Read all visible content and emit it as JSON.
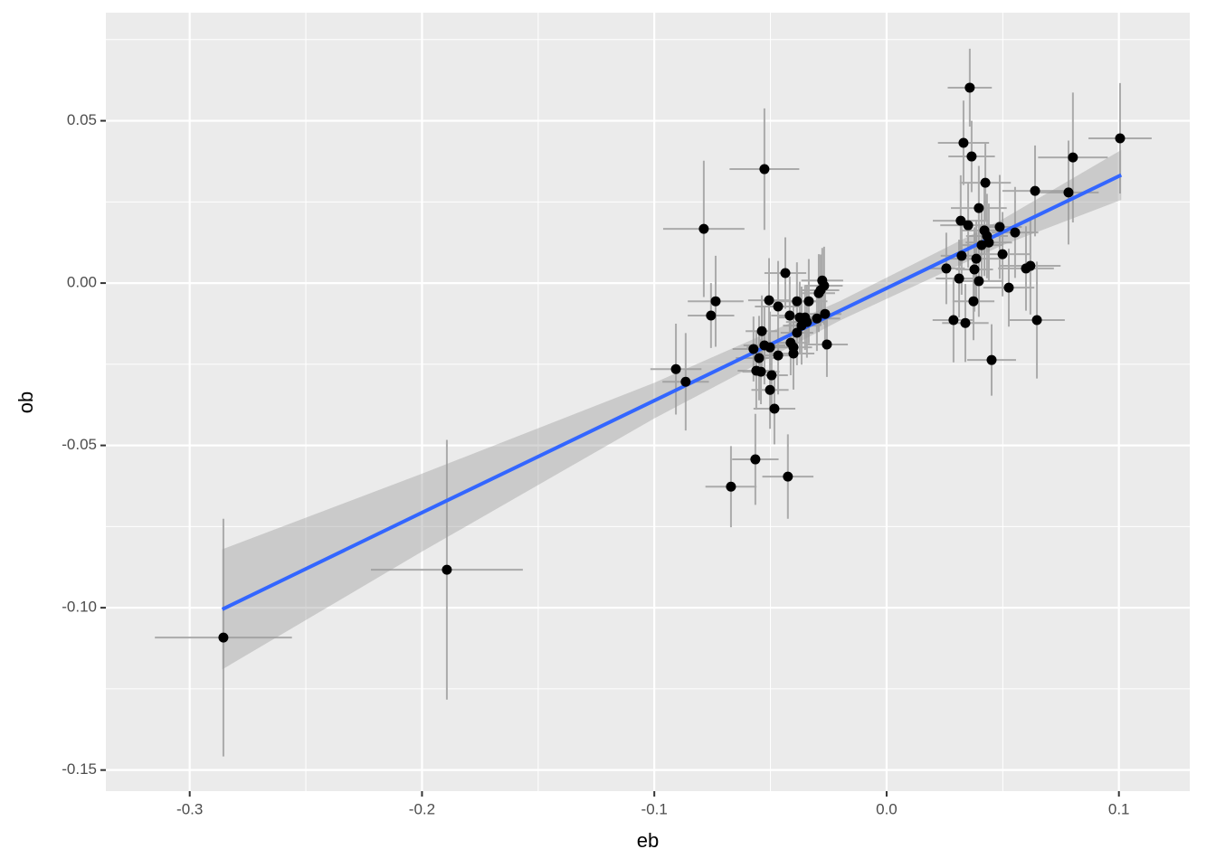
{
  "chart_data": {
    "type": "scatter",
    "x_label": "eb",
    "y_label": "ob",
    "xlim": [
      -0.3361,
      0.1305
    ],
    "ylim": [
      -0.1565,
      0.0833
    ],
    "xticks": [
      -0.3,
      -0.2,
      -0.1,
      {
        "value": 0,
        "label": "0.0"
      },
      0.1
    ],
    "yticks": [
      -0.15,
      {
        "value": -0.1,
        "label": "-0.10"
      },
      -0.05,
      {
        "value": 0,
        "label": "0.00"
      },
      0.05
    ],
    "grid": true,
    "minor_grid": true,
    "color": "#000000",
    "errorbar_color": "#aaaaaa",
    "x": [
      -0.2855,
      -0.1893,
      -0.0907,
      -0.0865,
      -0.0787,
      -0.0756,
      -0.0736,
      -0.0526,
      -0.067,
      -0.0565,
      -0.0425,
      -0.0573,
      -0.0561,
      -0.0549,
      -0.0537,
      -0.0526,
      -0.0541,
      -0.0506,
      -0.0502,
      -0.0502,
      -0.0495,
      -0.0483,
      -0.0467,
      -0.0467,
      -0.0436,
      -0.0417,
      -0.0413,
      -0.0401,
      -0.0401,
      -0.0386,
      -0.0386,
      -0.0374,
      -0.0366,
      -0.0351,
      -0.0343,
      -0.0335,
      -0.03,
      -0.0292,
      -0.0284,
      -0.0277,
      -0.0269,
      -0.0265,
      -0.0257,
      0.0257,
      0.0288,
      0.0312,
      0.0319,
      0.0323,
      0.0331,
      0.0339,
      0.0351,
      0.0358,
      0.0366,
      0.0374,
      0.0378,
      0.0386,
      0.0397,
      0.0397,
      0.0409,
      0.0421,
      0.0425,
      0.0432,
      0.044,
      0.0452,
      0.0487,
      0.0499,
      0.0526,
      0.0553,
      0.06,
      0.0619,
      0.0639,
      0.0647,
      0.0783,
      0.0802,
      0.1005
    ],
    "y": [
      -0.1092,
      -0.0883,
      -0.0265,
      -0.0304,
      0.0167,
      -0.01,
      -0.0056,
      0.0351,
      -0.0627,
      -0.0543,
      -0.0596,
      -0.0203,
      -0.027,
      -0.0231,
      -0.0148,
      -0.0192,
      -0.0273,
      -0.0053,
      -0.0198,
      -0.0329,
      -0.0284,
      -0.0387,
      -0.0223,
      -0.0072,
      0.0031,
      -0.01,
      -0.0184,
      -0.0217,
      -0.0198,
      -0.0056,
      -0.0153,
      -0.0106,
      -0.0131,
      -0.0106,
      -0.012,
      -0.0056,
      -0.0109,
      -0.0031,
      -0.0022,
      0.0008,
      -0.0008,
      -0.0095,
      -0.0189,
      0.0045,
      -0.0114,
      0.0014,
      0.0192,
      0.0084,
      0.0432,
      -0.0123,
      0.0178,
      0.0602,
      0.039,
      -0.0056,
      0.0042,
      0.0075,
      0.0006,
      0.0231,
      0.0117,
      0.0162,
      0.0309,
      0.0145,
      0.0125,
      -0.0237,
      0.0173,
      0.0089,
      -0.0014,
      0.0156,
      0.0045,
      0.0053,
      0.0284,
      -0.0114,
      0.0279,
      0.0387,
      0.0446
    ],
    "xerr": [
      0.0295,
      0.0327,
      0.011,
      0.01,
      0.0175,
      0.01,
      0.012,
      0.015,
      0.011,
      0.01,
      0.011,
      0.009,
      0.008,
      0.01,
      0.007,
      0.009,
      0.008,
      0.009,
      0.01,
      0.008,
      0.007,
      0.009,
      0.008,
      0.01,
      0.009,
      0.008,
      0.007,
      0.009,
      0.008,
      0.01,
      0.007,
      0.009,
      0.008,
      0.007,
      0.009,
      0.008,
      0.01,
      0.007,
      0.008,
      0.009,
      0.008,
      0.007,
      0.009,
      0.008,
      0.009,
      0.01,
      0.012,
      0.009,
      0.011,
      0.01,
      0.012,
      0.0095,
      0.01,
      0.009,
      0.008,
      0.011,
      0.01,
      0.012,
      0.009,
      0.01,
      0.011,
      0.009,
      0.01,
      0.0105,
      0.0095,
      0.012,
      0.011,
      0.01,
      0.012,
      0.013,
      0.014,
      0.012,
      0.013,
      0.015,
      0.0136
    ],
    "yerr": [
      0.0366,
      0.04,
      0.014,
      0.015,
      0.021,
      0.01,
      0.014,
      0.0187,
      0.0125,
      0.014,
      0.013,
      0.01,
      0.012,
      0.013,
      0.011,
      0.012,
      0.01,
      0.013,
      0.011,
      0.012,
      0.01,
      0.011,
      0.012,
      0.014,
      0.011,
      0.012,
      0.01,
      0.011,
      0.013,
      0.012,
      0.01,
      0.011,
      0.012,
      0.01,
      0.011,
      0.013,
      0.01,
      0.012,
      0.011,
      0.01,
      0.012,
      0.011,
      0.01,
      0.011,
      0.013,
      0.012,
      0.014,
      0.012,
      0.013,
      0.012,
      0.013,
      0.012,
      0.011,
      0.012,
      0.013,
      0.012,
      0.011,
      0.013,
      0.012,
      0.014,
      0.012,
      0.013,
      0.012,
      0.011,
      0.016,
      0.013,
      0.012,
      0.014,
      0.013,
      0.015,
      0.014,
      0.018,
      0.016,
      0.02,
      0.017
    ],
    "fit": {
      "color": "#3366ff",
      "band_color": "#999999",
      "x": [
        -0.286,
        -0.2,
        -0.1,
        -0.02,
        0.05,
        0.101
      ],
      "y": [
        -0.1005,
        -0.0707,
        -0.0362,
        -0.0085,
        0.0157,
        0.0333
      ],
      "lower": [
        -0.119,
        -0.0827,
        -0.0417,
        -0.0115,
        0.0117,
        0.0256
      ],
      "upper": [
        -0.082,
        -0.0587,
        -0.0307,
        -0.0055,
        0.0197,
        0.041
      ]
    }
  }
}
